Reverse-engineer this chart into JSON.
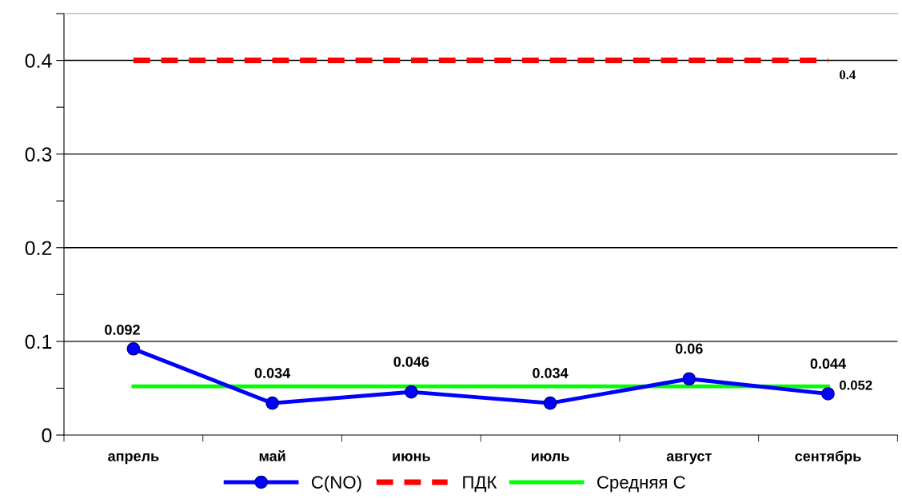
{
  "chart_data": {
    "type": "line",
    "categories": [
      "апрель",
      "май",
      "июнь",
      "июль",
      "август",
      "сентябрь"
    ],
    "series": [
      {
        "name": "C(NO)",
        "color": "#0000ff",
        "marker": "circle",
        "line_style": "solid",
        "values": [
          0.092,
          0.034,
          0.046,
          0.034,
          0.06,
          0.044
        ],
        "data_labels": true
      },
      {
        "name": "ПДК",
        "color": "#ff0000",
        "marker": "none",
        "line_style": "dashed",
        "values": [
          0.4,
          0.4,
          0.4,
          0.4,
          0.4,
          0.4
        ],
        "value_labels": [
          null,
          null,
          null,
          null,
          null,
          "0.4"
        ]
      },
      {
        "name": "Средняя С",
        "color": "#00ff00",
        "marker": "none",
        "line_style": "solid",
        "values": [
          0.052,
          0.052,
          0.052,
          0.052,
          0.052,
          0.052
        ],
        "value_labels": [
          null,
          null,
          null,
          null,
          null,
          "0.052"
        ]
      }
    ],
    "ylim": [
      0,
      0.45
    ],
    "yticks": [
      0,
      {
        "value": 0.05,
        "label": null
      },
      0.1,
      {
        "value": 0.15,
        "label": null
      },
      0.2,
      {
        "value": 0.25,
        "label": null
      },
      0.3,
      {
        "value": 0.35,
        "label": null
      },
      0.4,
      {
        "value": 0.45,
        "label": null
      }
    ],
    "grid": "y",
    "legend": "bottom"
  }
}
